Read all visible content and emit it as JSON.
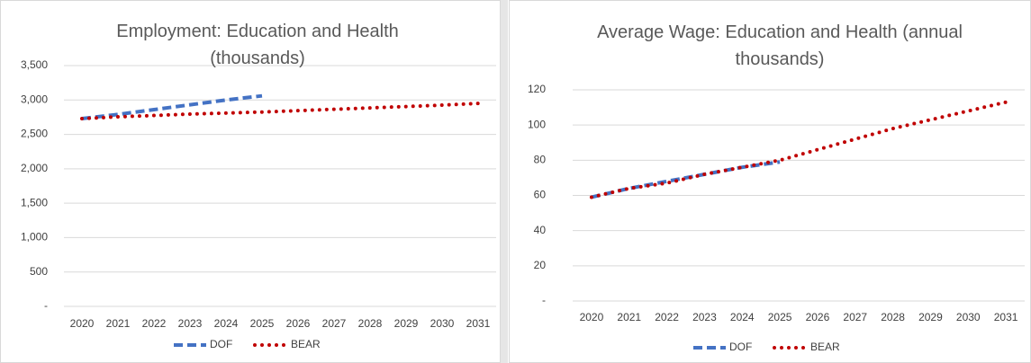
{
  "chart_data": [
    {
      "type": "line",
      "title": "Employment: Education and Health (thousands)",
      "categories": [
        "2020",
        "2021",
        "2022",
        "2023",
        "2024",
        "2025",
        "2026",
        "2027",
        "2028",
        "2029",
        "2030",
        "2031"
      ],
      "series": [
        {
          "name": "DOF",
          "color": "#4472c4",
          "dash": "dashed",
          "values": [
            2730,
            2790,
            2860,
            2930,
            3000,
            3060,
            null,
            null,
            null,
            null,
            null,
            null
          ]
        },
        {
          "name": "BEAR",
          "color": "#c00000",
          "dash": "dotted",
          "values": [
            2730,
            2755,
            2775,
            2795,
            2810,
            2825,
            2845,
            2865,
            2885,
            2905,
            2925,
            2950
          ]
        }
      ],
      "ylim": [
        0,
        3500
      ],
      "yticks": [
        {
          "value": 0,
          "label": "-"
        },
        500,
        {
          "value": 1000,
          "label": "1,000"
        },
        {
          "value": 1500,
          "label": "1,500"
        },
        {
          "value": 2000,
          "label": "2,000"
        },
        {
          "value": 2500,
          "label": "2,500"
        },
        {
          "value": 3000,
          "label": "3,000"
        },
        {
          "value": 3500,
          "label": "3,500"
        }
      ],
      "grid": true,
      "legend": "bottom"
    },
    {
      "type": "line",
      "title": "Average Wage: Education and Health (annual thousands)",
      "categories": [
        "2020",
        "2021",
        "2022",
        "2023",
        "2024",
        "2025",
        "2026",
        "2027",
        "2028",
        "2029",
        "2030",
        "2031"
      ],
      "series": [
        {
          "name": "DOF",
          "color": "#4472c4",
          "dash": "dashed",
          "values": [
            59,
            64,
            68,
            72,
            76,
            79,
            null,
            null,
            null,
            null,
            null,
            null
          ]
        },
        {
          "name": "BEAR",
          "color": "#c00000",
          "dash": "dotted",
          "values": [
            59,
            64,
            67,
            72,
            76,
            80,
            86,
            92,
            98,
            103,
            108,
            113
          ]
        }
      ],
      "ylim": [
        0,
        120
      ],
      "yticks": [
        {
          "value": 0,
          "label": "-"
        },
        20,
        40,
        60,
        80,
        100,
        120
      ],
      "grid": true,
      "legend": "bottom"
    }
  ]
}
